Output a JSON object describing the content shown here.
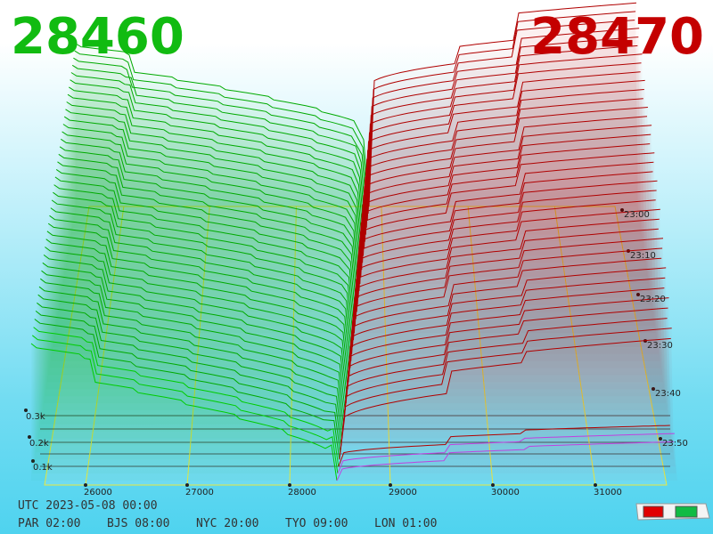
{
  "bid_price": "28460",
  "ask_price": "28470",
  "price_labels": [
    "26000",
    "27000",
    "28000",
    "29000",
    "30000",
    "31000"
  ],
  "depth_labels": [
    "0.1k",
    "0.2k",
    "0.3k"
  ],
  "time_labels": [
    "23:00",
    "23:10",
    "23:20",
    "23:30",
    "23:40",
    "23:50"
  ],
  "utc_label": "UTC 2023-05-08 00:00",
  "zone_labels": [
    "PAR 02:00",
    "BJS 08:00",
    "NYC 20:00",
    "TYO 09:00",
    "LON 01:00"
  ]
}
